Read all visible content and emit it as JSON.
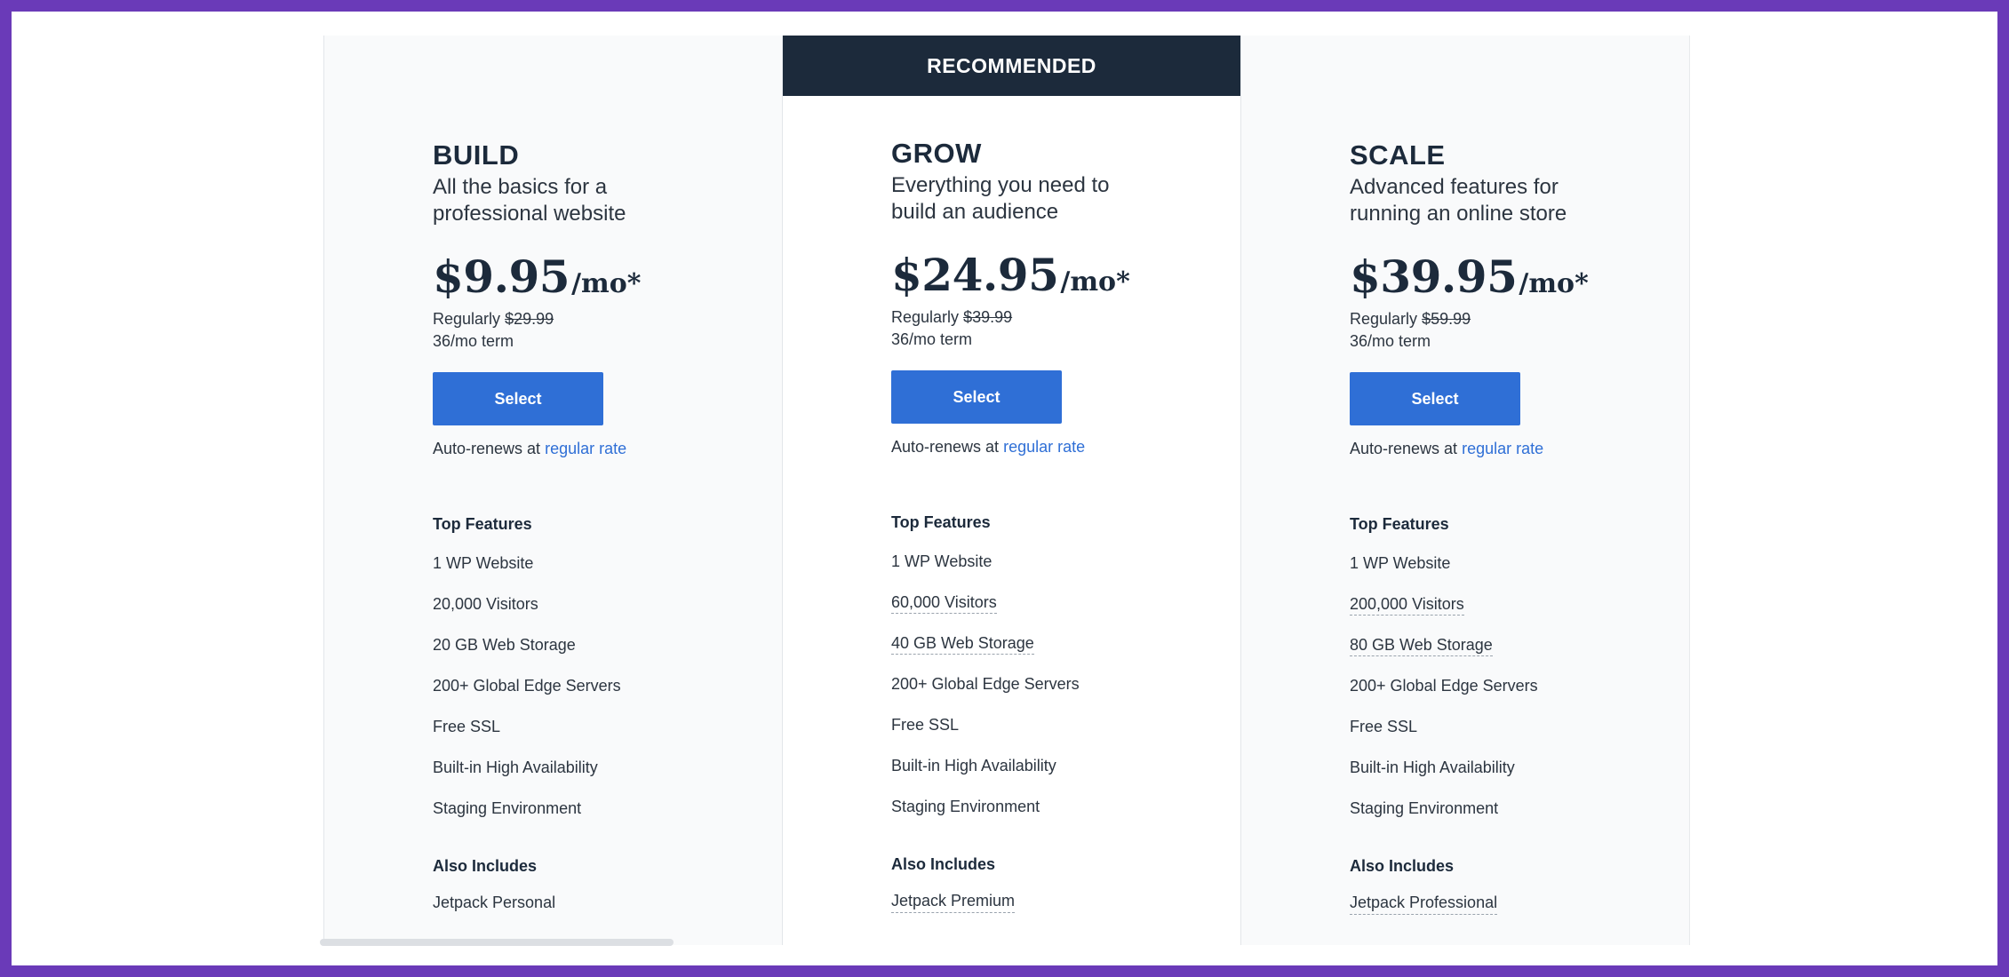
{
  "ribbon": "RECOMMENDED",
  "plans": [
    {
      "name": "BUILD",
      "tagline": "All the basics for a professional website",
      "price": "$9.95",
      "per": "/mo*",
      "regular_label": "Regularly",
      "regular_price": "$29.99",
      "term": "36/mo term",
      "select_label": "Select",
      "autorenew_text": "Auto-renews at",
      "autorenew_link": "regular rate",
      "top_features_heading": "Top Features",
      "features": [
        "1 WP Website",
        "20,000 Visitors",
        "20 GB Web Storage",
        "200+ Global Edge Servers",
        "Free SSL",
        "Built-in High Availability",
        "Staging Environment"
      ],
      "also_heading": "Also Includes",
      "also_item": "Jetpack Personal"
    },
    {
      "name": "GROW",
      "tagline": "Everything you need to build an audience",
      "price": "$24.95",
      "per": "/mo*",
      "regular_label": "Regularly",
      "regular_price": "$39.99",
      "term": "36/mo term",
      "select_label": "Select",
      "autorenew_text": "Auto-renews at",
      "autorenew_link": "regular rate",
      "top_features_heading": "Top Features",
      "features": [
        "1 WP Website",
        "60,000 Visitors",
        "40 GB Web Storage",
        "200+ Global Edge Servers",
        "Free SSL",
        "Built-in High Availability",
        "Staging Environment"
      ],
      "also_heading": "Also Includes",
      "also_item": "Jetpack Premium"
    },
    {
      "name": "SCALE",
      "tagline": "Advanced features for running an online store",
      "price": "$39.95",
      "per": "/mo*",
      "regular_label": "Regularly",
      "regular_price": "$59.99",
      "term": "36/mo term",
      "select_label": "Select",
      "autorenew_text": "Auto-renews at",
      "autorenew_link": "regular rate",
      "top_features_heading": "Top Features",
      "features": [
        "1 WP Website",
        "200,000 Visitors",
        "80 GB Web Storage",
        "200+ Global Edge Servers",
        "Free SSL",
        "Built-in High Availability",
        "Staging Environment"
      ],
      "also_heading": "Also Includes",
      "also_item": "Jetpack Professional"
    }
  ],
  "colors": {
    "frame": "#6a3ab8",
    "ribbon_bg": "#1c2a3b",
    "button": "#2f6fd6",
    "link": "#2f6fd6"
  }
}
